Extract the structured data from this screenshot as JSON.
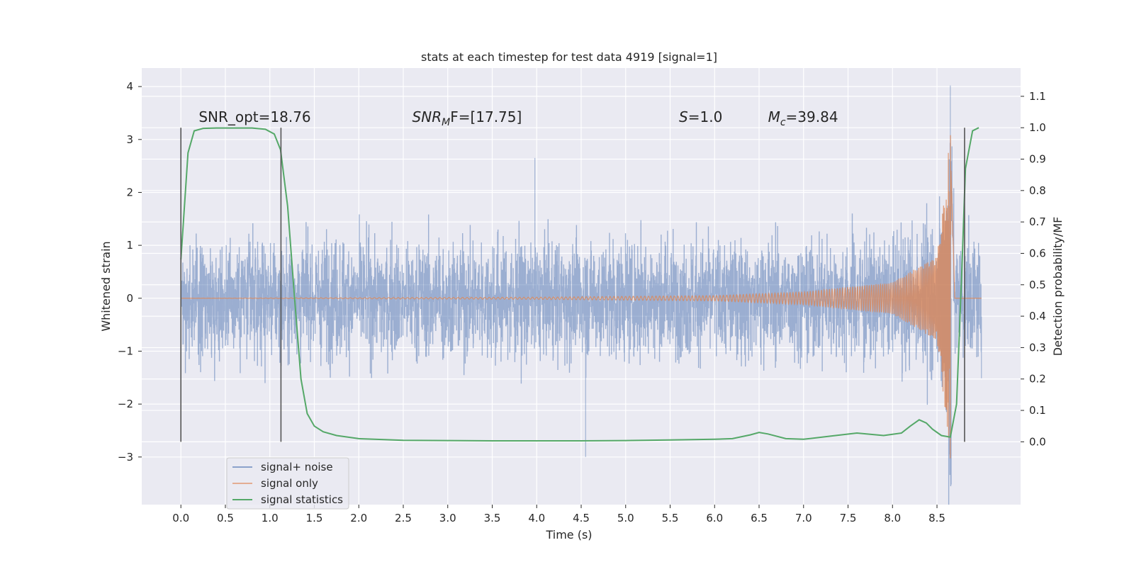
{
  "chart_data": {
    "type": "line",
    "title": "stats at each timestep for test data 4919 [signal=1]",
    "xlabel": "Time (s)",
    "ylabel": "Whitened strain",
    "ylabel_right": "Detection probability/MF",
    "xlim": [
      -0.44,
      9.44
    ],
    "ylim": [
      -3.9,
      4.35
    ],
    "ylim_right": [
      -0.2,
      1.19
    ],
    "x_ticks": [
      0.0,
      0.5,
      1.0,
      1.5,
      2.0,
      2.5,
      3.0,
      3.5,
      4.0,
      4.5,
      5.0,
      5.5,
      6.0,
      6.5,
      7.0,
      7.5,
      8.0,
      8.5
    ],
    "x_tick_labels": [
      "0.0",
      "0.5",
      "1.0",
      "1.5",
      "2.0",
      "2.5",
      "3.0",
      "3.5",
      "4.0",
      "4.5",
      "5.0",
      "5.5",
      "6.0",
      "6.5",
      "7.0",
      "7.5",
      "8.0",
      "8.5"
    ],
    "y_ticks": [
      4,
      3,
      2,
      1,
      0,
      -1,
      -2,
      -3
    ],
    "y_tick_labels": [
      "4",
      "3",
      "2",
      "1",
      "0",
      "−1",
      "−2",
      "−3"
    ],
    "y_right_ticks": [
      1.1,
      1.0,
      0.9,
      0.8,
      0.7,
      0.6,
      0.5,
      0.4,
      0.3,
      0.2,
      0.1,
      0.0
    ],
    "y_right_tick_labels": [
      "1.1",
      "1.0",
      "0.9",
      "0.8",
      "0.7",
      "0.6",
      "0.5",
      "0.4",
      "0.3",
      "0.2",
      "0.1",
      "0.0"
    ],
    "grid": true,
    "annotations": [
      {
        "id": "snr-opt",
        "text": "SNR_opt=18.76",
        "x": 0.2,
        "y": 1.0
      },
      {
        "id": "snr-mf",
        "base": "SNR",
        "sub": "M",
        "rest": "F=[17.75]",
        "x": 2.6,
        "y": 1.0
      },
      {
        "id": "s-val",
        "base": "S",
        "rest": "=1.0",
        "x": 5.6,
        "y": 1.0
      },
      {
        "id": "mc-val",
        "base": "M",
        "sub": "c",
        "rest": "=39.84",
        "x": 6.6,
        "y": 1.0
      }
    ],
    "vertical_markers": {
      "x": [
        0.0,
        1.125,
        8.81
      ],
      "y_range_right": [
        0.0,
        1.0
      ]
    },
    "series": [
      {
        "name": "signal+ noise",
        "color": "#4c72b0",
        "x_range": [
          0.0,
          9.0
        ],
        "envelope_top": 1.0,
        "envelope_bottom": -1.0,
        "typical_peak_range": [
          1.5,
          2.3
        ],
        "extremes": [
          {
            "x": 3.98,
            "y": 2.65
          },
          {
            "x": 4.55,
            "y": -3.0
          },
          {
            "x": 8.65,
            "y": 4.02
          },
          {
            "x": 8.66,
            "y": -3.52
          }
        ]
      },
      {
        "name": "signal only",
        "color": "#dd8452",
        "x_range": [
          0.0,
          9.0
        ],
        "description_points": [
          {
            "x": 0.0,
            "amp": 0.0
          },
          {
            "x": 4.0,
            "amp": 0.02
          },
          {
            "x": 6.0,
            "amp": 0.05
          },
          {
            "x": 7.0,
            "amp": 0.12
          },
          {
            "x": 8.0,
            "amp": 0.3
          },
          {
            "x": 8.5,
            "amp": 0.8
          },
          {
            "x": 8.62,
            "amp": 2.5
          },
          {
            "x": 8.65,
            "amp": 3.5
          },
          {
            "x": 8.7,
            "amp": 0.0
          }
        ]
      },
      {
        "name": "signal statistics",
        "color": "#55a868",
        "axis": "right",
        "x": [
          0.0,
          0.08,
          0.15,
          0.25,
          0.4,
          0.6,
          0.8,
          0.95,
          1.05,
          1.12,
          1.2,
          1.28,
          1.35,
          1.42,
          1.5,
          1.6,
          1.75,
          2.0,
          2.5,
          3.0,
          3.5,
          4.0,
          4.5,
          5.0,
          5.5,
          6.0,
          6.2,
          6.4,
          6.5,
          6.6,
          6.8,
          7.0,
          7.3,
          7.6,
          7.9,
          8.1,
          8.2,
          8.3,
          8.38,
          8.45,
          8.55,
          8.65,
          8.72,
          8.78,
          8.82,
          8.9,
          8.97
        ],
        "y": [
          0.58,
          0.92,
          0.99,
          0.998,
          0.999,
          0.999,
          0.999,
          0.995,
          0.98,
          0.93,
          0.75,
          0.45,
          0.2,
          0.09,
          0.05,
          0.032,
          0.02,
          0.01,
          0.005,
          0.004,
          0.003,
          0.003,
          0.003,
          0.004,
          0.006,
          0.008,
          0.01,
          0.022,
          0.03,
          0.025,
          0.01,
          0.008,
          0.018,
          0.028,
          0.02,
          0.028,
          0.05,
          0.07,
          0.06,
          0.04,
          0.02,
          0.015,
          0.12,
          0.55,
          0.87,
          0.99,
          1.0
        ]
      }
    ],
    "legend": {
      "position": "lower-left",
      "entries": [
        "signal+ noise",
        "signal only",
        "signal statistics"
      ]
    }
  }
}
